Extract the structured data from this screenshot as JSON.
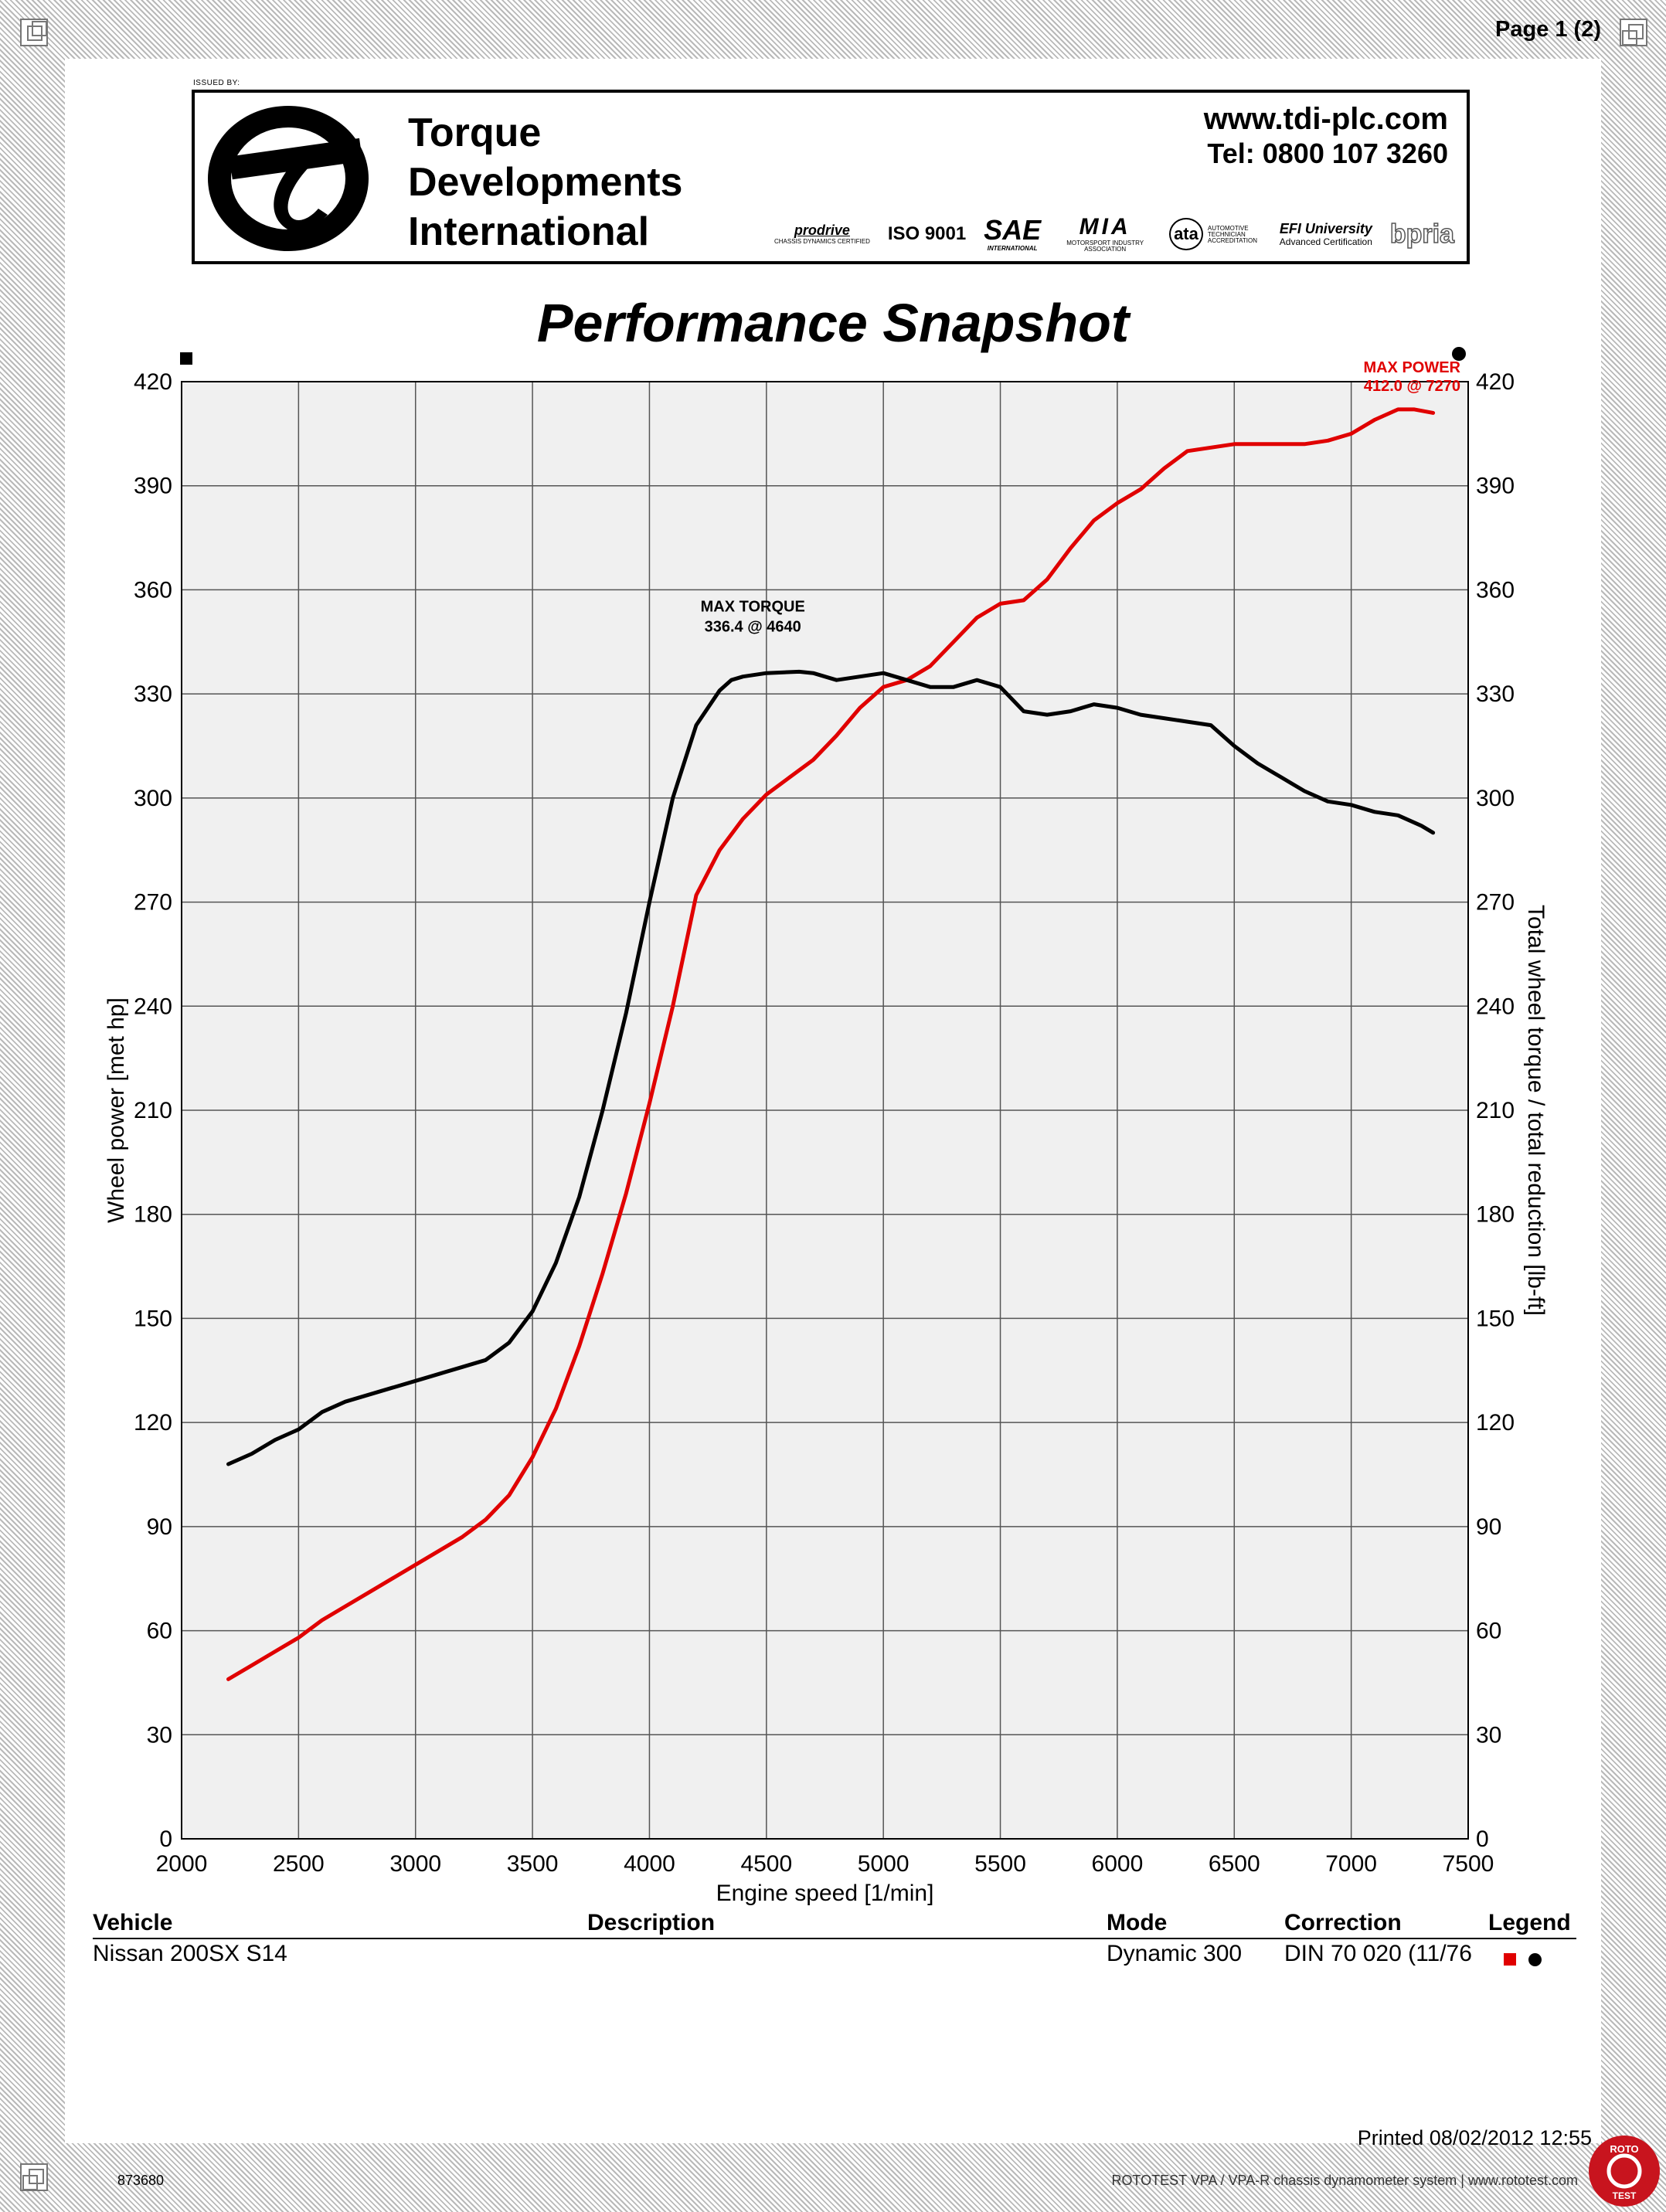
{
  "page_label": "Page 1 (2)",
  "header": {
    "issued_by": "ISSUED BY:",
    "company_lines": [
      "Torque",
      "Developments",
      "International"
    ],
    "website": "www.tdi-plc.com",
    "telephone": "Tel: 0800 107 3260",
    "certifications": [
      {
        "name": "prodrive",
        "sub": "CHASSIS DYNAMICS CERTIFIED"
      },
      {
        "name": "ISO 9001",
        "sub": ""
      },
      {
        "name": "SAE",
        "sub": "INTERNATIONAL"
      },
      {
        "name": "MIA",
        "sub": "MOTORSPORT INDUSTRY ASSOCIATION"
      },
      {
        "name": "ata",
        "sub": "AUTOMOTIVE TECHNICIAN ACCREDITATION"
      },
      {
        "name": "EFI University",
        "sub": "Advanced Certification"
      },
      {
        "name": "bpria",
        "sub": ""
      }
    ]
  },
  "chart_title": "Performance Snapshot",
  "chart_data": {
    "type": "line",
    "title": "Performance Snapshot",
    "xlabel": "Engine speed [1/min]",
    "ylabel_left": "Wheel power [met hp]",
    "ylabel_right": "Total wheel torque / total reduction [lb-ft]",
    "xlim": [
      2000,
      7500
    ],
    "ylim": [
      0,
      420
    ],
    "xticks": [
      2000,
      2500,
      3000,
      3500,
      4000,
      4500,
      5000,
      5500,
      6000,
      6500,
      7000,
      7500
    ],
    "yticks": [
      0,
      30,
      60,
      90,
      120,
      150,
      180,
      210,
      240,
      270,
      300,
      330,
      360,
      390,
      420
    ],
    "grid": true,
    "colors": {
      "power": "#e00000",
      "torque": "#000000",
      "grid": "#555555",
      "plot_bg": "#f0f0f0"
    },
    "series": [
      {
        "axis": "left",
        "marker": "square",
        "color": "#e00000",
        "x": [
          2200,
          2300,
          2400,
          2500,
          2600,
          2700,
          2800,
          2900,
          3000,
          3100,
          3200,
          3300,
          3400,
          3500,
          3600,
          3700,
          3800,
          3900,
          4000,
          4100,
          4200,
          4300,
          4400,
          4500,
          4600,
          4700,
          4800,
          4900,
          5000,
          5100,
          5200,
          5300,
          5400,
          5500,
          5600,
          5700,
          5800,
          5900,
          6000,
          6100,
          6200,
          6300,
          6400,
          6500,
          6600,
          6700,
          6800,
          6900,
          7000,
          7100,
          7200,
          7270,
          7350
        ],
        "values": [
          46,
          50,
          54,
          58,
          63,
          67,
          71,
          75,
          79,
          83,
          87,
          92,
          99,
          110,
          124,
          142,
          163,
          186,
          212,
          240,
          272,
          285,
          294,
          301,
          306,
          311,
          318,
          326,
          332,
          334,
          338,
          345,
          352,
          356,
          357,
          363,
          372,
          380,
          385,
          389,
          395,
          400,
          401,
          402,
          402,
          402,
          402,
          403,
          405,
          409,
          412,
          412.0,
          411
        ]
      },
      {
        "axis": "right",
        "marker": "circle",
        "color": "#000000",
        "x": [
          2200,
          2300,
          2400,
          2500,
          2600,
          2700,
          2800,
          2900,
          3000,
          3100,
          3200,
          3300,
          3400,
          3500,
          3600,
          3700,
          3800,
          3900,
          4000,
          4100,
          4200,
          4300,
          4350,
          4400,
          4500,
          4640,
          4700,
          4800,
          4900,
          5000,
          5100,
          5200,
          5300,
          5400,
          5500,
          5600,
          5700,
          5800,
          5900,
          6000,
          6100,
          6200,
          6300,
          6400,
          6500,
          6600,
          6700,
          6800,
          6900,
          7000,
          7100,
          7200,
          7300,
          7350
        ],
        "values": [
          108,
          111,
          115,
          118,
          123,
          126,
          128,
          130,
          132,
          134,
          136,
          138,
          143,
          152,
          166,
          185,
          210,
          238,
          270,
          300,
          321,
          331,
          334,
          335,
          336,
          336.4,
          336,
          334,
          335,
          336,
          334,
          332,
          332,
          334,
          332,
          325,
          324,
          325,
          327,
          326,
          324,
          323,
          322,
          321,
          315,
          310,
          306,
          302,
          299,
          298,
          296,
          295,
          292,
          290
        ]
      }
    ],
    "annotations": {
      "max_torque": {
        "label": "MAX TORQUE",
        "value_text": "336.4 @ 4640",
        "x": 4640,
        "y": 336.4
      },
      "max_power": {
        "label": "MAX POWER",
        "value_text": "412.0 @ 7270",
        "x": 7270,
        "y": 412.0
      }
    }
  },
  "table": {
    "headers": {
      "vehicle": "Vehicle",
      "description": "Description",
      "mode": "Mode",
      "correction": "Correction",
      "legend": "Legend"
    },
    "row": {
      "vehicle": "Nissan  200SX S14",
      "description": "",
      "mode": "Dynamic 300",
      "correction": "DIN 70 020 (11/76"
    }
  },
  "footer": {
    "printed": "Printed 08/02/2012 12:55",
    "code": "873680",
    "system_text": "ROTOTEST VPA / VPA-R chassis dynamometer system | www.rototest.com",
    "roto_label_top": "ROTO",
    "roto_label_bottom": "TEST"
  }
}
